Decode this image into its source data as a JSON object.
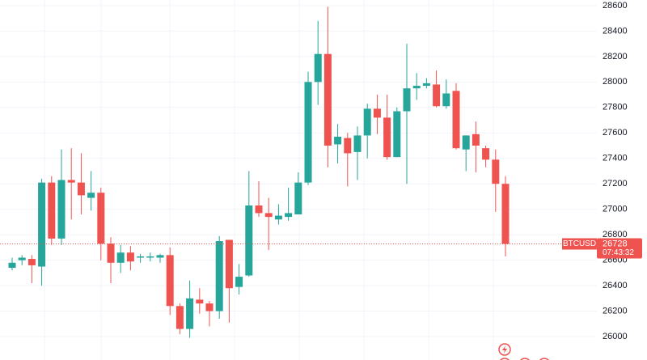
{
  "chart_data": {
    "type": "candlestick",
    "ylim": [
      25816,
      28644
    ],
    "yticks": [
      26000,
      26200,
      26400,
      26600,
      26800,
      27000,
      27200,
      27400,
      27600,
      27800,
      28000,
      28200,
      28400,
      28600
    ],
    "grid": true,
    "up_color": "#26a69a",
    "down_color": "#ef5350",
    "open": [
      26540,
      26600,
      26610,
      26550,
      27210,
      26770,
      27230,
      27210,
      27090,
      27130,
      26730,
      26580,
      26660,
      26620,
      26620,
      26620,
      26640,
      26240,
      26060,
      26290,
      26260,
      26200,
      26760,
      26390,
      26480,
      27030,
      26970,
      26920,
      26940,
      26960,
      27210,
      28000,
      28220,
      27510,
      27560,
      27450,
      27580,
      27790,
      27720,
      27410,
      27770,
      27950,
      27970,
      27980,
      27810,
      27930,
      27470,
      27590,
      27480,
      27390,
      27200
    ],
    "high": [
      26620,
      26640,
      26640,
      27240,
      27260,
      27470,
      27480,
      27440,
      27300,
      27170,
      26780,
      26720,
      26710,
      26650,
      26660,
      26650,
      26700,
      26260,
      26440,
      26380,
      26280,
      26790,
      26760,
      26570,
      27300,
      27220,
      27090,
      27040,
      27170,
      27290,
      28080,
      28480,
      28590,
      27670,
      27600,
      27650,
      27830,
      27900,
      27900,
      27800,
      28300,
      28070,
      28030,
      28090,
      28020,
      27990,
      27580,
      27690,
      27500,
      27470,
      27260
    ],
    "low": [
      26520,
      26560,
      26420,
      26400,
      26720,
      26720,
      26920,
      26960,
      26990,
      26600,
      26420,
      26500,
      26520,
      26580,
      26590,
      26580,
      26170,
      26020,
      25990,
      26180,
      26080,
      26140,
      26110,
      26330,
      26470,
      26940,
      26680,
      26880,
      26910,
      26960,
      27190,
      27820,
      27330,
      27360,
      27180,
      27230,
      27400,
      27590,
      27390,
      27410,
      27200,
      27860,
      27950,
      27800,
      27790,
      27470,
      27300,
      27290,
      27330,
      26980,
      26630
    ],
    "close": [
      26580,
      26620,
      26560,
      27210,
      26770,
      27230,
      27210,
      27110,
      27130,
      26730,
      26580,
      26660,
      26590,
      26630,
      26630,
      26640,
      26240,
      26060,
      26300,
      26260,
      26200,
      26750,
      26380,
      26470,
      27030,
      26970,
      26940,
      26950,
      26970,
      27210,
      28000,
      28220,
      27500,
      27570,
      27440,
      27580,
      27790,
      27720,
      27410,
      27770,
      27950,
      27970,
      27990,
      27810,
      27910,
      27480,
      27580,
      27500,
      27390,
      27200,
      26728
    ],
    "price_label": {
      "symbol": "BTCUSD",
      "price": 26728,
      "time": "07:43:32"
    }
  }
}
